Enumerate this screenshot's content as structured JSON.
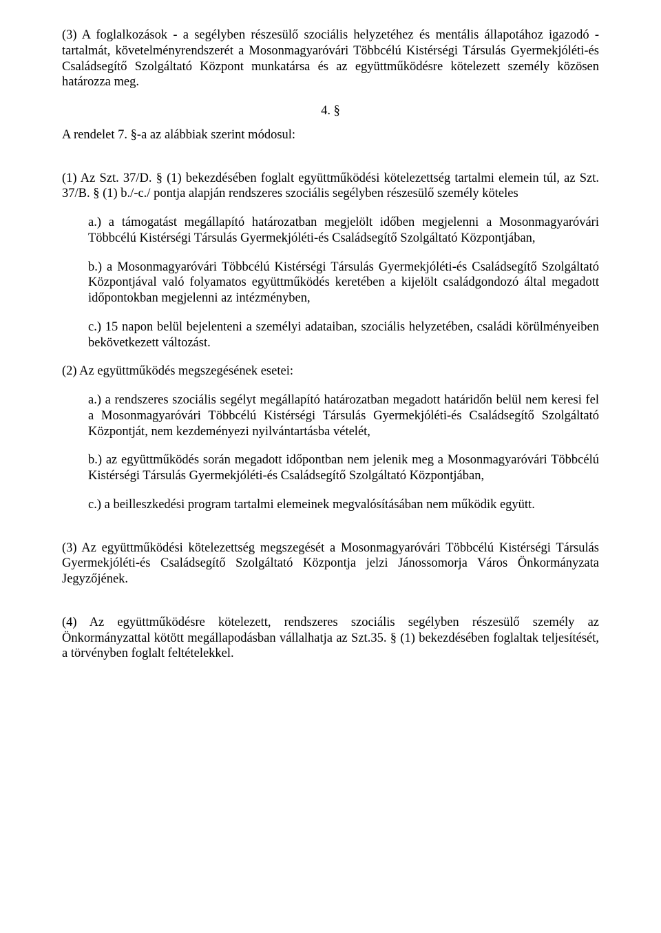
{
  "doc": {
    "para_3": "(3) A foglalkozások - a segélyben részesülő szociális helyzetéhez és mentális állapotához igazodó - tartalmát, követelményrendszerét a Mosonmagyaróvári Többcélú Kistérségi Társulás Gyermekjóléti-és Családsegítő Szolgáltató Központ munkatársa és az együttműködésre kötelezett személy közösen határozza meg.",
    "section_number": "4. §",
    "rendelet_line": "A rendelet 7. §-a az alábbiak szerint módosul:",
    "para_1_intro": "(1) Az Szt. 37/D. § (1) bekezdésében foglalt együttműködési kötelezettség tartalmi elemein túl, az Szt. 37/B. § (1) b./-c./ pontja alapján rendszeres szociális segélyben részesülő személy köteles",
    "para_1_a": "a.) a támogatást megállapító határozatban megjelölt időben megjelenni a Mosonmagyaróvári Többcélú Kistérségi Társulás Gyermekjóléti-és Családsegítő Szolgáltató Központjában,",
    "para_1_b": "b.) a Mosonmagyaróvári Többcélú Kistérségi Társulás Gyermekjóléti-és Családsegítő Szolgáltató Központjával való folyamatos együttműködés keretében a kijelölt családgondozó által megadott időpontokban megjelenni az intézményben,",
    "para_1_c": "c.) 15 napon belül bejelenteni a személyi adataiban, szociális helyzetében, családi körülményeiben bekövetkezett változást.",
    "para_2_intro": "(2) Az együttműködés megszegésének esetei:",
    "para_2_a": "a.) a rendszeres szociális segélyt megállapító határozatban megadott határidőn belül nem keresi fel a Mosonmagyaróvári Többcélú Kistérségi Társulás Gyermekjóléti-és Családsegítő Szolgáltató Központját, nem kezdeményezi nyilvántartásba vételét,",
    "para_2_b": "b.) az együttműködés során megadott időpontban nem jelenik meg a Mosonmagyaróvári Többcélú Kistérségi Társulás Gyermekjóléti-és Családsegítő Szolgáltató Központjában,",
    "para_2_c": "c.) a beilleszkedési program tartalmi elemeinek megvalósításában nem működik együtt.",
    "para_3b": "(3) Az együttműködési kötelezettség megszegését a Mosonmagyaróvári Többcélú Kistérségi Társulás Gyermekjóléti-és Családsegítő Szolgáltató Központja jelzi Jánossomorja Város Önkormányzata Jegyzőjének.",
    "para_4": "(4) Az együttműködésre kötelezett, rendszeres szociális segélyben részesülő személy az Önkormányzattal kötött megállapodásban vállalhatja az Szt.35. § (1) bekezdésében foglaltak teljesítését, a törvényben foglalt feltételekkel."
  }
}
